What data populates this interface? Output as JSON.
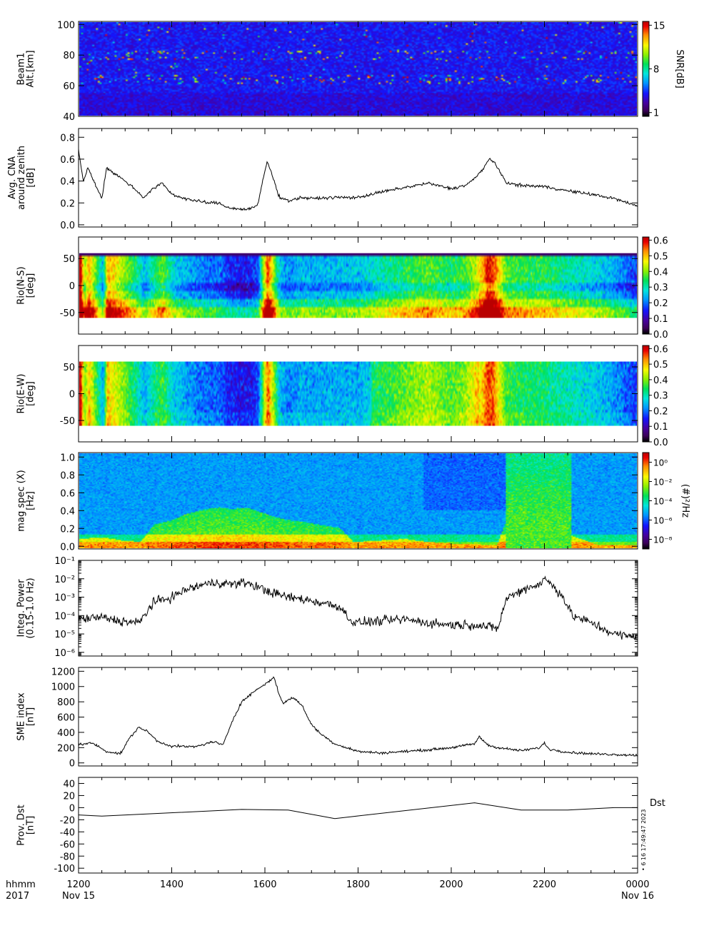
{
  "chart_data": [
    {
      "type": "heatmap",
      "ylabel_lines": [
        "Beam1",
        "Alt.[km]"
      ],
      "ylim": [
        40,
        102
      ],
      "yticks": [
        "40",
        "60",
        "80",
        "100"
      ],
      "colorbar": {
        "label": "SNR[dB]",
        "ticks": [
          "1",
          "8",
          "15"
        ],
        "range": [
          1,
          15
        ]
      },
      "echo_bands_km": [
        62,
        64,
        66,
        78,
        82
      ]
    },
    {
      "type": "line",
      "ylabel_lines": [
        "Avg. CNA",
        "around zenith",
        "[dB]"
      ],
      "ylim": [
        -0.02,
        0.88
      ],
      "yticks": [
        "0.0",
        "0.2",
        "0.4",
        "0.6",
        "0.8"
      ],
      "x_hours": [
        12.0,
        12.1,
        12.2,
        12.35,
        12.5,
        12.6,
        12.8,
        13.0,
        13.2,
        13.4,
        13.6,
        13.8,
        14.0,
        14.2,
        14.5,
        14.8,
        15.0,
        15.2,
        15.5,
        15.7,
        15.85,
        15.95,
        16.05,
        16.1,
        16.2,
        16.3,
        16.5,
        16.8,
        17.0,
        17.5,
        18.0,
        18.5,
        19.0,
        19.5,
        20.0,
        20.3,
        20.5,
        20.7,
        20.8,
        20.9,
        21.2,
        21.5,
        22.0,
        22.5,
        23.0,
        23.5,
        24.0
      ],
      "values": [
        0.68,
        0.4,
        0.52,
        0.38,
        0.24,
        0.52,
        0.46,
        0.4,
        0.33,
        0.25,
        0.33,
        0.38,
        0.28,
        0.25,
        0.22,
        0.2,
        0.2,
        0.16,
        0.14,
        0.15,
        0.18,
        0.4,
        0.58,
        0.52,
        0.4,
        0.26,
        0.22,
        0.25,
        0.24,
        0.25,
        0.25,
        0.3,
        0.34,
        0.38,
        0.33,
        0.36,
        0.42,
        0.52,
        0.6,
        0.58,
        0.38,
        0.36,
        0.35,
        0.31,
        0.28,
        0.24,
        0.17
      ]
    },
    {
      "type": "heatmap",
      "ylabel_lines": [
        "Rio(N-S)",
        "[deg]"
      ],
      "ylim": [
        -90,
        90
      ],
      "yticks": [
        "-50",
        "0",
        "50"
      ],
      "data_range_deg": [
        -60,
        60
      ],
      "colorbar": {
        "ticks": [
          "0.0",
          "0.1",
          "0.2",
          "0.3",
          "0.4",
          "0.5",
          "0.6"
        ],
        "range": [
          0,
          0.62
        ]
      }
    },
    {
      "type": "heatmap",
      "ylabel_lines": [
        "Rio(E-W)",
        "[deg]"
      ],
      "ylim": [
        -90,
        90
      ],
      "yticks": [
        "-50",
        "0",
        "50"
      ],
      "data_range_deg": [
        -60,
        60
      ],
      "colorbar": {
        "ticks": [
          "0.0",
          "0.1",
          "0.2",
          "0.3",
          "0.4",
          "0.5",
          "0.6"
        ],
        "range": [
          0,
          0.62
        ]
      }
    },
    {
      "type": "heatmap",
      "ylabel_lines": [
        "mag spec (X)",
        "[Hz]"
      ],
      "ylim": [
        -0.03,
        1.05
      ],
      "yticks": [
        "0.0",
        "0.2",
        "0.4",
        "0.6",
        "0.8",
        "1.0"
      ],
      "colorbar": {
        "label": "(#)²/Hz",
        "ticks": [
          "10⁻⁸",
          "10⁻⁶",
          "10⁻⁴",
          "10⁻²",
          "10⁰"
        ],
        "range_log10": [
          -9,
          1
        ]
      }
    },
    {
      "type": "line",
      "yscale": "log",
      "ylabel_lines": [
        "Integ. Power",
        "(0.15-1.0 Hz)"
      ],
      "ylim_log10": [
        -6.2,
        -1
      ],
      "yticks": [
        "10⁻⁶",
        "10⁻⁵",
        "10⁻⁴",
        "10⁻³",
        "10⁻²",
        "10⁻¹"
      ],
      "x_hours": [
        12.0,
        12.5,
        12.9,
        13.3,
        13.6,
        14.0,
        14.3,
        14.7,
        15.0,
        15.3,
        15.6,
        15.9,
        16.2,
        16.5,
        16.8,
        17.2,
        17.6,
        17.9,
        18.5,
        19.0,
        19.5,
        20.0,
        20.5,
        21.0,
        21.1,
        21.2,
        21.4,
        21.6,
        21.9,
        22.0,
        22.2,
        22.4,
        22.6,
        23.0,
        23.5,
        24.0
      ],
      "log10_values": [
        -4.2,
        -4.1,
        -4.3,
        -4.4,
        -3.3,
        -3.0,
        -2.6,
        -2.3,
        -2.2,
        -2.3,
        -2.2,
        -2.5,
        -2.8,
        -3.0,
        -3.1,
        -3.3,
        -3.5,
        -4.4,
        -4.3,
        -4.2,
        -4.4,
        -4.5,
        -4.5,
        -4.7,
        -3.8,
        -3.0,
        -2.8,
        -2.5,
        -2.3,
        -2.0,
        -2.4,
        -3.0,
        -4.0,
        -4.4,
        -5.0,
        -5.2
      ]
    },
    {
      "type": "line",
      "ylabel_lines": [
        "SME index",
        "[nT]"
      ],
      "ylim": [
        -40,
        1250
      ],
      "yticks": [
        "0",
        "200",
        "400",
        "600",
        "800",
        "1000",
        "1200"
      ],
      "x_hours": [
        12.0,
        12.3,
        12.6,
        12.9,
        13.1,
        13.3,
        13.5,
        13.7,
        14.0,
        14.5,
        14.9,
        15.1,
        15.3,
        15.5,
        15.8,
        16.0,
        16.2,
        16.3,
        16.4,
        16.6,
        16.8,
        17.0,
        17.2,
        17.5,
        18.0,
        18.5,
        19.0,
        19.5,
        20.0,
        20.5,
        20.6,
        20.8,
        21.0,
        21.5,
        21.9,
        22.0,
        22.1,
        22.5,
        23.0,
        23.5,
        24.0
      ],
      "values": [
        240,
        260,
        150,
        120,
        330,
        470,
        400,
        280,
        220,
        210,
        280,
        230,
        550,
        800,
        950,
        1030,
        1120,
        900,
        780,
        860,
        750,
        500,
        380,
        250,
        150,
        130,
        150,
        170,
        200,
        250,
        340,
        230,
        200,
        160,
        200,
        260,
        180,
        140,
        120,
        110,
        100
      ]
    },
    {
      "type": "line",
      "ylabel_lines": [
        "Prov. Dst",
        "[nT]"
      ],
      "ylim": [
        -108,
        50
      ],
      "yticks": [
        "-100",
        "-80",
        "-60",
        "-40",
        "-20",
        "0",
        "20",
        "40"
      ],
      "series": [
        {
          "name": "Dst",
          "x_hours": [
            12.0,
            12.5,
            15.5,
            16.5,
            17.5,
            20.5,
            21.5,
            22.5,
            23.5,
            24.0
          ],
          "values": [
            -12,
            -14,
            -3,
            -4,
            -18,
            8,
            -4,
            -4,
            0,
            0
          ]
        }
      ],
      "side_annotation": "• 6 16 17:49:47 2023"
    }
  ],
  "xaxis": {
    "prefix_lines": [
      "hhmm",
      "2017"
    ],
    "tick_labels": [
      "1200",
      "1400",
      "1600",
      "1800",
      "2000",
      "2200",
      "0000"
    ],
    "date_labels": [
      "Nov 15",
      "Nov 16"
    ],
    "xlim_hours": [
      12,
      24
    ]
  },
  "colors": {
    "axis": "#000000",
    "line": "#000000",
    "background": "#ffffff"
  }
}
